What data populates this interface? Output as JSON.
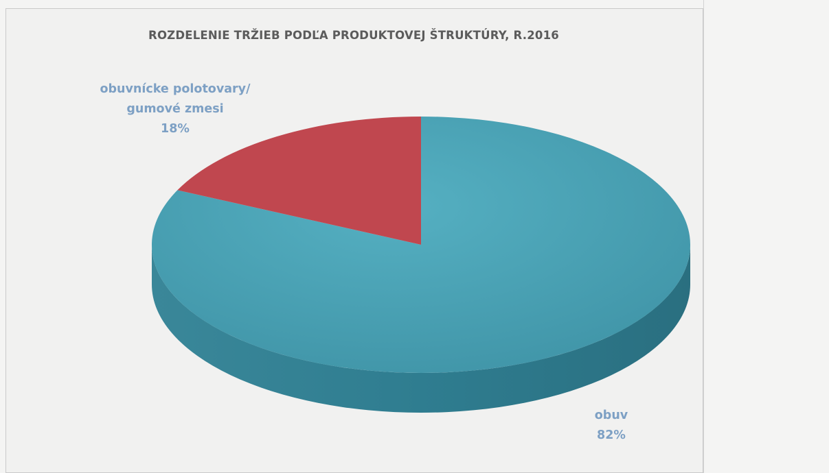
{
  "chart_data": {
    "type": "pie",
    "title": "ROZDELENIE TRŽIEB PODĽA PRODUKTOVEJ ŠTRUKTÚRY, R.2016",
    "slices": [
      {
        "name": "obuv",
        "label_lines": [
          "obuv"
        ],
        "value": 82,
        "percent_label": "82%",
        "color": "#4599ab",
        "side_color": "#2f7f92"
      },
      {
        "name": "obuvnícke polotovary/ gumové zmesi",
        "label_lines": [
          "obuvnícke polotovary/",
          "gumové zmesi"
        ],
        "value": 18,
        "percent_label": "18%",
        "color": "#c0474f",
        "side_color": "#98343b"
      }
    ],
    "style": "3d",
    "label_color": "#7da0c4"
  }
}
